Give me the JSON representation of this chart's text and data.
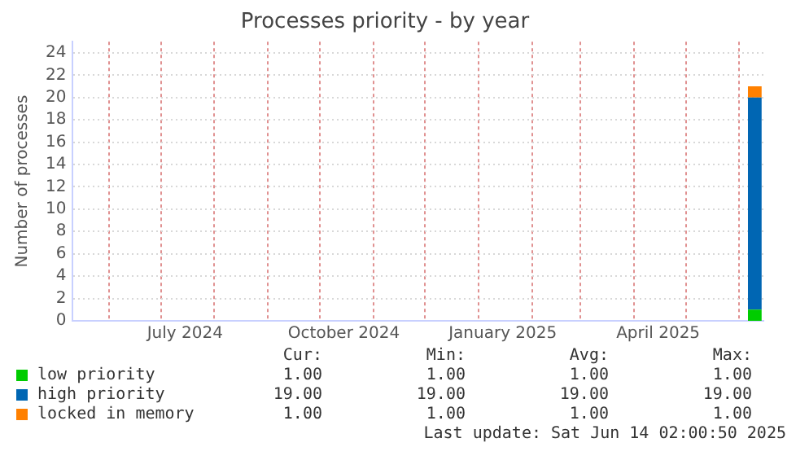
{
  "chart_data": {
    "type": "area",
    "title": "Processes priority - by year",
    "ylabel": "Number of processes",
    "stacked": true,
    "grid": true,
    "legend": "bottom",
    "marker": "none",
    "x": [
      "2025-06-06",
      "2025-06-14"
    ],
    "xlim": [
      "2024-05-11",
      "2025-06-15"
    ],
    "xticks": [
      {
        "value": "2024-06-01",
        "label": null
      },
      {
        "value": "2024-07-01",
        "label": null
      },
      {
        "value": "2024-07-15",
        "label": "July 2024"
      },
      {
        "value": "2024-08-01",
        "label": null
      },
      {
        "value": "2024-09-01",
        "label": null
      },
      {
        "value": "2024-10-01",
        "label": null
      },
      {
        "value": "2024-10-15",
        "label": "October 2024"
      },
      {
        "value": "2024-11-01",
        "label": null
      },
      {
        "value": "2024-12-01",
        "label": null
      },
      {
        "value": "2025-01-01",
        "label": null
      },
      {
        "value": "2025-01-15",
        "label": "January 2025"
      },
      {
        "value": "2025-02-01",
        "label": null
      },
      {
        "value": "2025-03-01",
        "label": null
      },
      {
        "value": "2025-04-01",
        "label": null
      },
      {
        "value": "2025-04-15",
        "label": "April 2025"
      },
      {
        "value": "2025-05-01",
        "label": null
      },
      {
        "value": "2025-06-01",
        "label": null
      }
    ],
    "ylim": [
      0,
      25
    ],
    "yticks": [
      0,
      2,
      4,
      6,
      8,
      10,
      12,
      14,
      16,
      18,
      20,
      22,
      24
    ],
    "series": [
      {
        "name": "low priority",
        "color": "#00cc00",
        "values": [
          1,
          1
        ]
      },
      {
        "name": "high priority",
        "color": "#0066b3",
        "values": [
          19,
          19
        ]
      },
      {
        "name": "locked in memory",
        "color": "#ff8000",
        "values": [
          1,
          1
        ]
      }
    ],
    "annotations": [
      "Cur:",
      "Min:",
      "Avg:",
      "Max:",
      "1.00",
      "1.00",
      "1.00",
      "1.00",
      "19.00",
      "19.00",
      "19.00",
      "19.00",
      "1.00",
      "1.00",
      "1.00",
      "1.00",
      "Last update: Sat Jun 14 02:00:50 2025"
    ]
  }
}
